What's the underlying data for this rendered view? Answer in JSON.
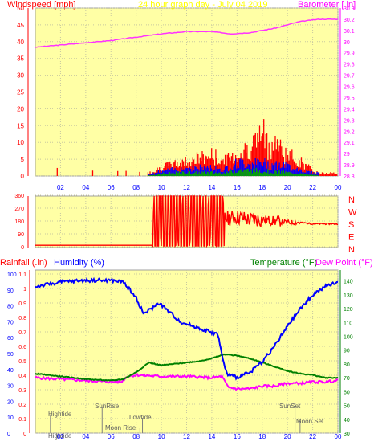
{
  "chart_data": [
    {
      "type": "bar",
      "title": "24 hour graph day - July 04 2019",
      "ylabel_left": "Windspeed [mph]",
      "ylabel_right": "Barometer [ in]",
      "x_ticks": [
        "02",
        "04",
        "06",
        "08",
        "10",
        "12",
        "14",
        "16",
        "18",
        "20",
        "22",
        "00"
      ],
      "ylim_left": [
        0,
        50
      ],
      "left_ticks": [
        "0",
        "5",
        "10",
        "15",
        "20",
        "25",
        "30",
        "35",
        "40",
        "45",
        "50"
      ],
      "ylim_right": [
        28.8,
        30.3
      ],
      "right_ticks": [
        "28.8",
        "28.9",
        "29",
        "29.1",
        "29.2",
        "29.3",
        "29.4",
        "29.5",
        "29.6",
        "29.7",
        "29.8",
        "29.9",
        "30",
        "30.1",
        "30.2",
        "30.3"
      ],
      "series": [
        {
          "role": "barometer",
          "color": "#ff33ff",
          "x": [
            0,
            2,
            4,
            6,
            8,
            10,
            12,
            14,
            15.5,
            17,
            19,
            21,
            22.5,
            24
          ],
          "values": [
            29.95,
            29.97,
            29.99,
            30.01,
            30.04,
            30.07,
            30.09,
            30.09,
            30.07,
            30.08,
            30.12,
            30.18,
            30.2,
            30.2
          ]
        },
        {
          "role": "gust",
          "color": "#ff0000",
          "x": [
            0,
            9,
            10,
            11,
            12,
            13,
            14,
            15,
            15.8,
            16.5,
            17,
            17.5,
            18,
            18.5,
            19,
            19.5,
            20,
            20.5,
            21,
            22,
            22.5,
            24
          ],
          "values": [
            1,
            1,
            3,
            4,
            5,
            6,
            7,
            5,
            7,
            8,
            10,
            12,
            15,
            10,
            12,
            9,
            7,
            6,
            5,
            2,
            1,
            1
          ]
        },
        {
          "role": "wind_avg",
          "color": "#0000ff",
          "x": [
            9,
            10,
            12,
            14,
            15,
            16,
            17,
            18,
            19,
            20,
            21,
            22
          ],
          "values": [
            0.5,
            1.5,
            2.5,
            2.5,
            2,
            4,
            4,
            4,
            3.5,
            3,
            2,
            1
          ]
        },
        {
          "role": "wind_min",
          "color": "#00aa00",
          "x": [
            9,
            10,
            12,
            14,
            15,
            16,
            17,
            18,
            19,
            20,
            21,
            22
          ],
          "values": [
            0.2,
            0.8,
            1.2,
            1.2,
            1,
            2,
            2,
            2,
            1.5,
            1.2,
            0.8,
            0.3
          ]
        }
      ]
    },
    {
      "type": "line",
      "ylim": [
        0,
        360
      ],
      "left_ticks": [
        "0",
        "90",
        "180",
        "270",
        "360"
      ],
      "compass": [
        "N",
        "W",
        "S",
        "E",
        "N"
      ],
      "series": [
        {
          "role": "wind_direction",
          "color": "#ff0000",
          "x": [
            0,
            9.3,
            9.4,
            15,
            15.5,
            16,
            17,
            18,
            19,
            20,
            21,
            22,
            24
          ],
          "values": [
            10,
            10,
            200,
            200,
            200,
            210,
            190,
            190,
            180,
            170,
            170,
            160,
            160
          ]
        }
      ]
    },
    {
      "type": "line",
      "label_rain": "Rainfall (.in)",
      "label_humidity": "Humidity (%)",
      "label_temp": "Temperature (°F)",
      "label_dew": "Dew Point (°F)",
      "ylim_humidity": [
        0,
        100
      ],
      "humidity_ticks": [
        "0",
        "10",
        "20",
        "30",
        "40",
        "50",
        "60",
        "70",
        "80",
        "90",
        "100"
      ],
      "ylim_rain": [
        0,
        1.1
      ],
      "rain_ticks": [
        "0",
        "0.1",
        "0.2",
        "0.3",
        "0.4",
        "0.5",
        "0.6",
        "0.7",
        "0.8",
        "0.9",
        "1",
        "1.1"
      ],
      "ylim_temp": [
        30,
        145
      ],
      "temp_ticks": [
        "30",
        "40",
        "50",
        "60",
        "70",
        "80",
        "90",
        "100",
        "110",
        "120",
        "130",
        "140"
      ],
      "x_ticks": [
        "02",
        "04",
        "06",
        "08",
        "10",
        "12",
        "14",
        "16",
        "18",
        "20",
        "22",
        "00"
      ],
      "annotations": [
        "Hightide",
        "SunRise",
        "Lowtide",
        "Moon Rise",
        "SunSet",
        "Moon Set",
        "Hightide"
      ],
      "series": [
        {
          "role": "humidity",
          "color": "#0000ff",
          "x": [
            0,
            2,
            4,
            6,
            7,
            8,
            8.6,
            9.2,
            9.8,
            10.5,
            11.5,
            13,
            14.5,
            14.9,
            15.2,
            16,
            17,
            18,
            19,
            20,
            21,
            22,
            23,
            24
          ],
          "values": [
            92,
            95,
            96,
            96,
            95,
            85,
            75,
            78,
            82,
            77,
            70,
            66,
            62,
            45,
            37,
            35,
            38,
            45,
            55,
            67,
            78,
            87,
            92,
            95
          ]
        },
        {
          "role": "temperature",
          "color": "#008000",
          "x": [
            0,
            2,
            4,
            6,
            7,
            8,
            9,
            10,
            11,
            12,
            13,
            14,
            15,
            16,
            17,
            18,
            19,
            20,
            21,
            22,
            23,
            24
          ],
          "values": [
            73,
            71,
            69,
            68,
            69,
            74,
            81,
            79,
            80,
            81,
            82,
            84,
            87,
            86,
            84,
            81,
            78,
            75,
            73,
            72,
            70,
            70
          ]
        },
        {
          "role": "dew_point",
          "color": "#ff00ff",
          "x": [
            0,
            2,
            4,
            6,
            6.8,
            7.3,
            8,
            10,
            12,
            14,
            14.8,
            15.3,
            16,
            17,
            18,
            19,
            20,
            21,
            22,
            23,
            24
          ],
          "values": [
            70,
            69,
            68,
            67,
            67,
            71,
            72,
            71,
            71,
            70,
            71,
            63,
            62,
            62,
            64,
            64,
            66,
            66,
            67,
            67,
            68
          ]
        }
      ]
    }
  ]
}
